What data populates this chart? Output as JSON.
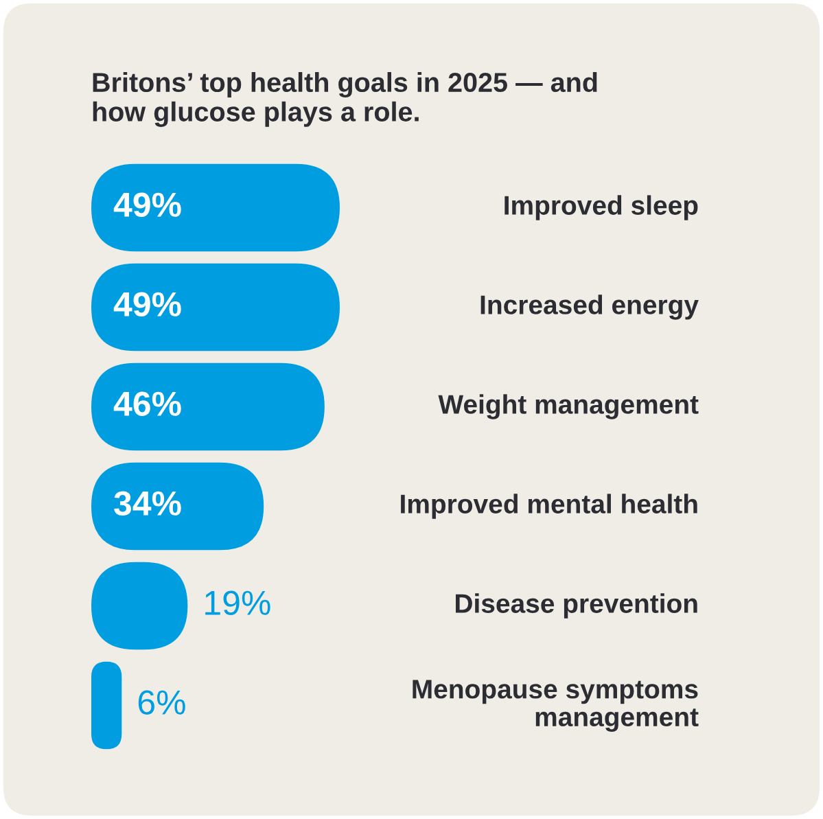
{
  "chart_data": {
    "type": "bar",
    "orientation": "horizontal",
    "title": "Britons’ top health goals in 2025 — and\nhow glucose plays a role.",
    "categories": [
      "Improved sleep",
      "Increased energy",
      "Weight management",
      "Improved mental health",
      "Disease prevention",
      "Menopause symptoms\nmanagement"
    ],
    "values": [
      49,
      49,
      46,
      34,
      19,
      6
    ],
    "value_labels": [
      "49%",
      "49%",
      "46%",
      "34%",
      "19%",
      "6%"
    ],
    "color": "#009ee0"
  }
}
